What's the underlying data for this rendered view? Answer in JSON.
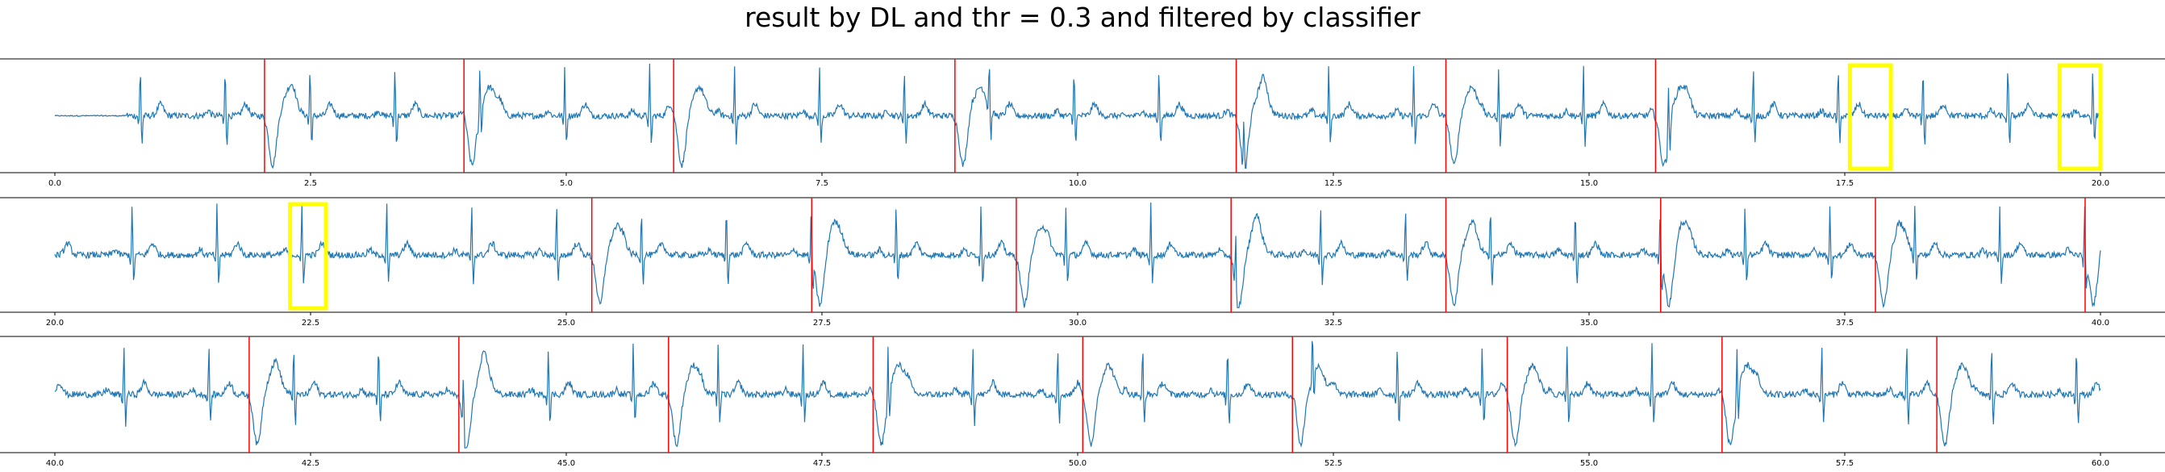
{
  "title": "result by DL and thr = 0.3 and filtered by classifier",
  "chart_data": [
    {
      "type": "line",
      "title": "",
      "xlabel": "",
      "ylabel": "",
      "xlim": [
        0,
        20
      ],
      "xticks": [
        "0.0",
        "2.5",
        "5.0",
        "7.5",
        "10.0",
        "12.5",
        "15.0",
        "17.5",
        "20.0"
      ],
      "series_color": "#1f77b4",
      "red_lines_x": [
        2.05,
        4.0,
        6.05,
        8.8,
        11.55,
        13.6,
        15.65
      ],
      "yellow_boxes": [
        {
          "x0": 17.55,
          "x1": 17.95
        },
        {
          "x0": 19.6,
          "x1": 20.0
        }
      ],
      "grid": false
    },
    {
      "type": "line",
      "title": "",
      "xlabel": "",
      "ylabel": "",
      "xlim": [
        20,
        40
      ],
      "xticks": [
        "20.0",
        "22.5",
        "25.0",
        "27.5",
        "30.0",
        "32.5",
        "35.0",
        "37.5",
        "40.0"
      ],
      "series_color": "#1f77b4",
      "red_lines_x": [
        25.25,
        27.4,
        29.4,
        31.5,
        33.6,
        35.7,
        37.8,
        39.85
      ],
      "yellow_boxes": [
        {
          "x0": 22.3,
          "x1": 22.65
        }
      ],
      "grid": false
    },
    {
      "type": "line",
      "title": "",
      "xlabel": "",
      "ylabel": "",
      "xlim": [
        40,
        60
      ],
      "xticks": [
        "40.0",
        "42.5",
        "45.0",
        "47.5",
        "50.0",
        "52.5",
        "55.0",
        "57.5",
        "60.0"
      ],
      "series_color": "#1f77b4",
      "red_lines_x": [
        41.9,
        43.95,
        46.0,
        48.0,
        50.05,
        52.1,
        54.2,
        56.3,
        58.4
      ],
      "yellow_boxes": [],
      "grid": false
    }
  ],
  "colors": {
    "signal": "#1f77b4",
    "marker_line": "#ff0000",
    "highlight_box": "#ffff00"
  }
}
